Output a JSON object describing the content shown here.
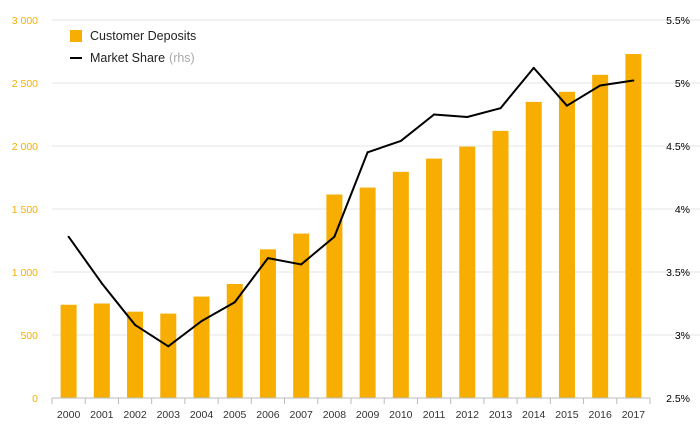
{
  "chart_data": {
    "type": "bar",
    "categories": [
      "2000",
      "2001",
      "2002",
      "2003",
      "2004",
      "2005",
      "2006",
      "2007",
      "2008",
      "2009",
      "2010",
      "2011",
      "2012",
      "2013",
      "2014",
      "2015",
      "2016",
      "2017"
    ],
    "series": [
      {
        "name": "Customer Deposits",
        "type": "bar",
        "axis": "left",
        "color": "#F7AE00",
        "values": [
          740,
          750,
          685,
          670,
          805,
          905,
          1180,
          1305,
          1615,
          1670,
          1795,
          1900,
          1995,
          2120,
          2350,
          2430,
          2565,
          2730
        ]
      },
      {
        "name": "Market Share",
        "name_note": "(rhs)",
        "type": "line",
        "axis": "right",
        "color": "#000000",
        "values": [
          3.78,
          3.41,
          3.08,
          2.91,
          3.11,
          3.26,
          3.61,
          3.56,
          3.78,
          4.45,
          4.54,
          4.75,
          4.73,
          4.8,
          5.12,
          4.82,
          4.98,
          5.02
        ]
      }
    ],
    "y_left": {
      "ylim": [
        0,
        3000
      ],
      "ticks": [
        0,
        500,
        1000,
        1500,
        2000,
        2500,
        3000
      ],
      "tick_labels": [
        "0",
        "500",
        "1 000",
        "1 500",
        "2 000",
        "2 500",
        "3 000"
      ],
      "label_color": "#F7AE00"
    },
    "y_right": {
      "ylim": [
        2.5,
        5.5
      ],
      "ticks": [
        2.5,
        3,
        3.5,
        4,
        4.5,
        5,
        5.5
      ],
      "tick_labels": [
        "2.5%",
        "3%",
        "3.5%",
        "4%",
        "4.5%",
        "5%",
        "5.5%"
      ]
    },
    "grid": true,
    "legend_position": "top-left",
    "title": "",
    "xlabel": "",
    "ylabel": ""
  }
}
